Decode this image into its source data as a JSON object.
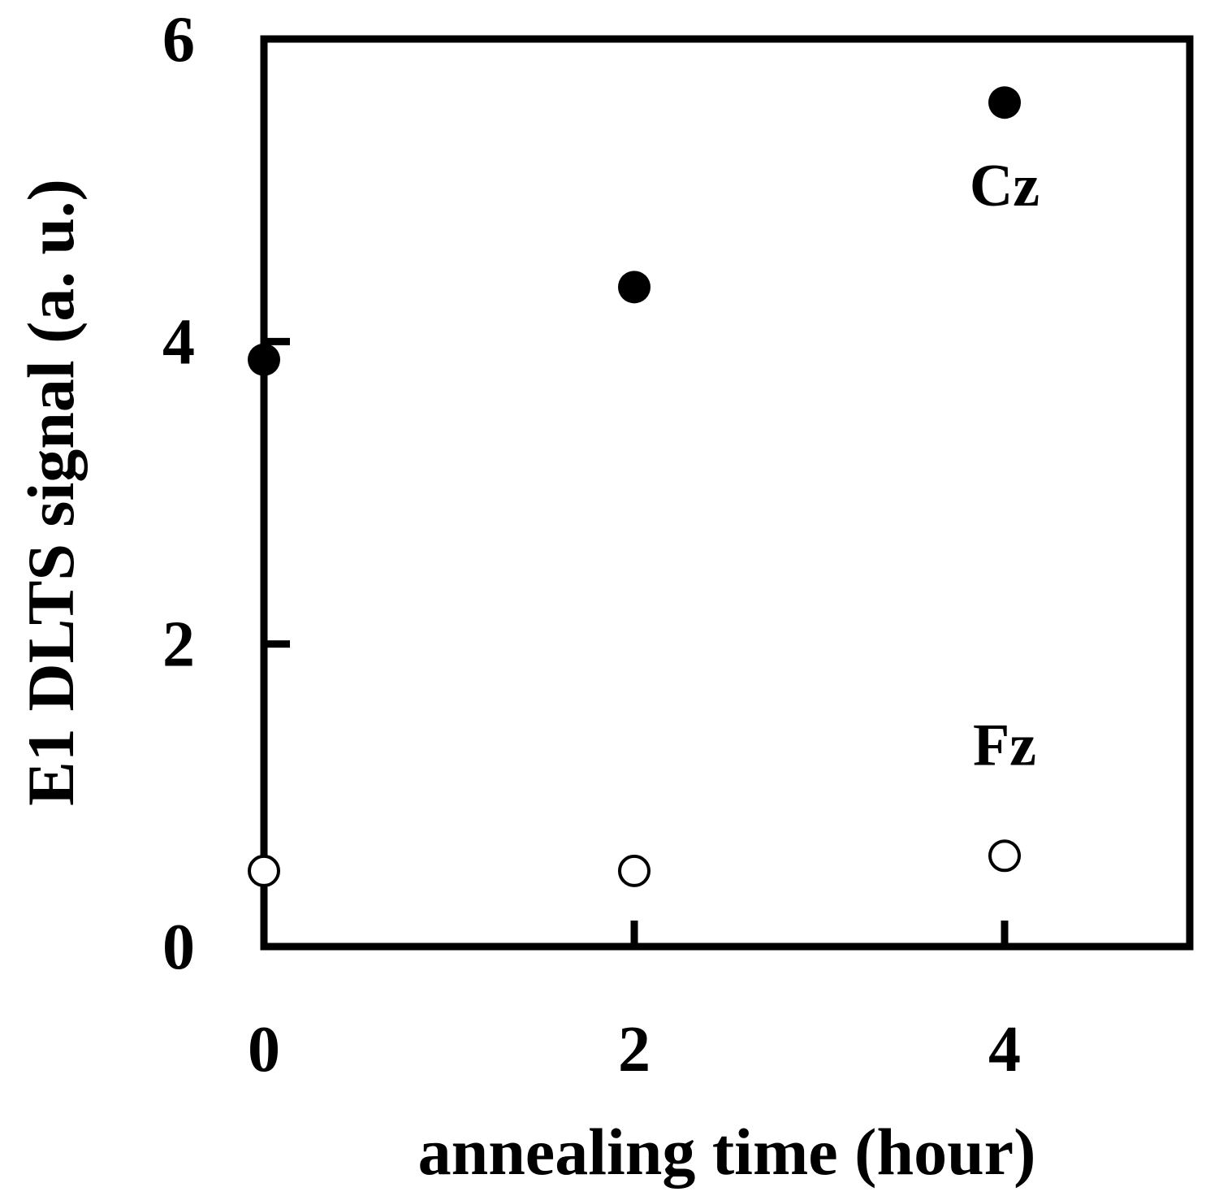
{
  "chart_data": {
    "type": "scatter",
    "xlabel": "annealing time (hour)",
    "ylabel": "E1 DLTS signal (a. u.)",
    "xlim": [
      0,
      5
    ],
    "ylim": [
      0,
      6
    ],
    "x_ticks": [
      0,
      2,
      4
    ],
    "y_ticks": [
      0,
      2,
      4,
      6
    ],
    "grid": false,
    "legend": "none",
    "series": [
      {
        "marker": "filled-circle",
        "color": "#000000",
        "x": [
          0,
          2,
          4
        ],
        "y": [
          3.88,
          4.36,
          5.58
        ]
      },
      {
        "marker": "open-circle",
        "color": "#000000",
        "x": [
          0,
          2,
          4
        ],
        "y": [
          0.5,
          0.5,
          0.6
        ]
      }
    ],
    "annotations": [
      {
        "text": "Cz",
        "x": 4.0,
        "y": 4.9
      },
      {
        "text": "Fz",
        "x": 4.0,
        "y": 1.2
      }
    ]
  }
}
